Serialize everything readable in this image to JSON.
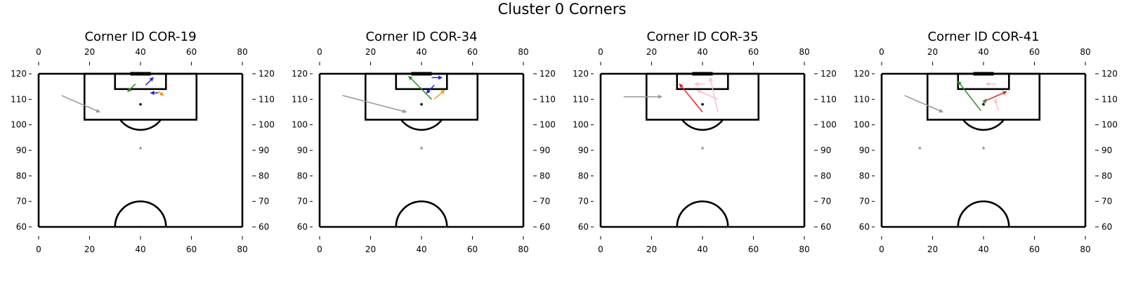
{
  "figure_title": "Cluster 0 Corners",
  "chart_data": [
    {
      "type": "scatter",
      "title": "Corner ID COR-19",
      "xlim": [
        0,
        80
      ],
      "ylim": [
        60,
        120
      ],
      "x_ticks": [
        0,
        20,
        40,
        60,
        80
      ],
      "y_ticks": [
        60,
        70,
        80,
        90,
        100,
        110,
        120
      ],
      "x_tick_labels": [
        "0",
        "20",
        "40",
        "60",
        "80"
      ],
      "y_tick_labels": [
        "60",
        "70",
        "80",
        "90",
        "100",
        "110",
        "120"
      ],
      "pitch": true,
      "markers": [
        {
          "x": 40,
          "y": 108,
          "color": "#000000",
          "shape": "dot"
        },
        {
          "x": 40,
          "y": 91,
          "color": "#999999",
          "shape": "triangle"
        }
      ],
      "arrows": [
        {
          "x1": 9,
          "y1": 111.5,
          "x2": 24,
          "y2": 105,
          "color": "#999999"
        },
        {
          "x1": 42,
          "y1": 115.5,
          "x2": 45,
          "y2": 118.5,
          "color": "#2222dd"
        },
        {
          "x1": 47,
          "y1": 112.5,
          "x2": 44,
          "y2": 112.5,
          "color": "#2222dd"
        },
        {
          "x1": 47,
          "y1": 113,
          "x2": 49,
          "y2": 111.5,
          "color": "#ff9900"
        },
        {
          "x1": 38,
          "y1": 116,
          "x2": 35,
          "y2": 113,
          "color": "#2a8f2a"
        }
      ]
    },
    {
      "type": "scatter",
      "title": "Corner ID COR-34",
      "xlim": [
        0,
        80
      ],
      "ylim": [
        60,
        120
      ],
      "x_ticks": [
        0,
        20,
        40,
        60,
        80
      ],
      "y_ticks": [
        60,
        70,
        80,
        90,
        100,
        110,
        120
      ],
      "x_tick_labels": [
        "0",
        "20",
        "40",
        "60",
        "80"
      ],
      "y_tick_labels": [
        "60",
        "70",
        "80",
        "90",
        "100",
        "110",
        "120"
      ],
      "pitch": true,
      "markers": [
        {
          "x": 40,
          "y": 108,
          "color": "#000000",
          "shape": "dot"
        },
        {
          "x": 40,
          "y": 91,
          "color": "#999999",
          "shape": "triangle"
        }
      ],
      "arrows": [
        {
          "x1": 9,
          "y1": 111.5,
          "x2": 34,
          "y2": 105,
          "color": "#999999"
        },
        {
          "x1": 44,
          "y1": 110,
          "x2": 35,
          "y2": 119,
          "color": "#2a8f2a"
        },
        {
          "x1": 44,
          "y1": 118.5,
          "x2": 48,
          "y2": 118.5,
          "color": "#2222dd"
        },
        {
          "x1": 45,
          "y1": 115.5,
          "x2": 42,
          "y2": 112.5,
          "color": "#2222dd"
        },
        {
          "x1": 45,
          "y1": 110,
          "x2": 49,
          "y2": 113.5,
          "color": "#ff9900"
        }
      ]
    },
    {
      "type": "scatter",
      "title": "Corner ID COR-35",
      "xlim": [
        0,
        80
      ],
      "ylim": [
        60,
        120
      ],
      "x_ticks": [
        0,
        20,
        40,
        60,
        80
      ],
      "y_ticks": [
        60,
        70,
        80,
        90,
        100,
        110,
        120
      ],
      "x_tick_labels": [
        "0",
        "20",
        "40",
        "60",
        "80"
      ],
      "y_tick_labels": [
        "60",
        "70",
        "80",
        "90",
        "100",
        "110",
        "120"
      ],
      "pitch": true,
      "markers": [
        {
          "x": 40,
          "y": 108,
          "color": "#000000",
          "shape": "dot"
        },
        {
          "x": 40,
          "y": 91,
          "color": "#999999",
          "shape": "triangle"
        }
      ],
      "arrows": [
        {
          "x1": 9,
          "y1": 111,
          "x2": 24,
          "y2": 111,
          "color": "#999999"
        },
        {
          "x1": 40,
          "y1": 105,
          "x2": 31,
          "y2": 116,
          "color": "#ee2222"
        },
        {
          "x1": 46,
          "y1": 105,
          "x2": 43,
          "y2": 118.5,
          "color": "#ffbbcc"
        },
        {
          "x1": 46,
          "y1": 110,
          "x2": 38,
          "y2": 113.5,
          "color": "#ffbbcc"
        },
        {
          "x1": 41,
          "y1": 116,
          "x2": 37,
          "y2": 116,
          "color": "#ffbbcc"
        }
      ]
    },
    {
      "type": "scatter",
      "title": "Corner ID COR-41",
      "xlim": [
        0,
        80
      ],
      "ylim": [
        60,
        120
      ],
      "x_ticks": [
        0,
        20,
        40,
        60,
        80
      ],
      "y_ticks": [
        60,
        70,
        80,
        90,
        100,
        110,
        120
      ],
      "x_tick_labels": [
        "0",
        "20",
        "40",
        "60",
        "80"
      ],
      "y_tick_labels": [
        "60",
        "70",
        "80",
        "90",
        "100",
        "110",
        "120"
      ],
      "pitch": true,
      "markers": [
        {
          "x": 40,
          "y": 108,
          "color": "#000000",
          "shape": "dot"
        },
        {
          "x": 40,
          "y": 91,
          "color": "#999999",
          "shape": "triangle"
        },
        {
          "x": 15,
          "y": 91,
          "color": "#999999",
          "shape": "triangle"
        }
      ],
      "arrows": [
        {
          "x1": 9,
          "y1": 111.5,
          "x2": 24,
          "y2": 105,
          "color": "#999999"
        },
        {
          "x1": 39,
          "y1": 105.5,
          "x2": 30,
          "y2": 117,
          "color": "#2a8f2a"
        },
        {
          "x1": 40,
          "y1": 108.5,
          "x2": 41,
          "y2": 110,
          "color": "#2a8f2a"
        },
        {
          "x1": 41,
          "y1": 109.5,
          "x2": 49,
          "y2": 113,
          "color": "#ee2222"
        },
        {
          "x1": 46,
          "y1": 105.5,
          "x2": 44.5,
          "y2": 110,
          "color": "#ffbbcc"
        },
        {
          "x1": 45,
          "y1": 116,
          "x2": 41,
          "y2": 116,
          "color": "#ffbbcc"
        }
      ]
    }
  ]
}
